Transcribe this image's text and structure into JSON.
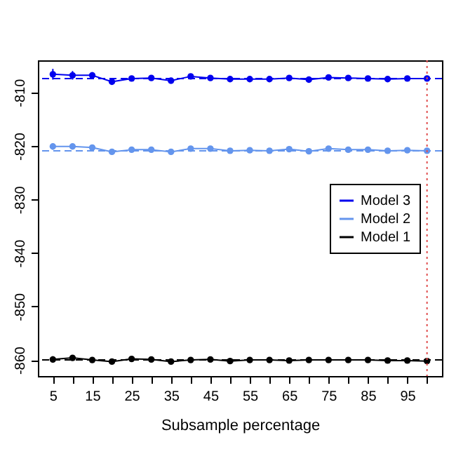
{
  "chart_data": {
    "type": "line",
    "xlabel": "Subsample percentage",
    "x": [
      5,
      10,
      15,
      20,
      25,
      30,
      35,
      40,
      45,
      50,
      55,
      60,
      65,
      70,
      75,
      80,
      85,
      90,
      95,
      100
    ],
    "series": [
      {
        "name": "Model 3",
        "color": "#0000ee",
        "values": [
          -806.6,
          -806.8,
          -806.8,
          -808.0,
          -807.4,
          -807.3,
          -807.8,
          -807.0,
          -807.3,
          -807.5,
          -807.5,
          -807.5,
          -807.3,
          -807.6,
          -807.2,
          -807.3,
          -807.4,
          -807.5,
          -807.4,
          -807.4
        ],
        "errors": [
          1.0,
          0.8,
          0.6,
          0.5,
          0.4,
          0.4,
          0.4,
          0.3,
          0.3,
          0.3,
          0.3,
          0.3,
          0.3,
          0.3,
          0.3,
          0.3,
          0.3,
          0.3,
          0.3,
          null
        ]
      },
      {
        "name": "Model 2",
        "color": "#6495ed",
        "values": [
          -820.1,
          -820.1,
          -820.3,
          -821.1,
          -820.7,
          -820.7,
          -821.1,
          -820.5,
          -820.5,
          -820.9,
          -820.8,
          -820.9,
          -820.6,
          -821.0,
          -820.5,
          -820.7,
          -820.7,
          -820.9,
          -820.8,
          -820.9
        ],
        "errors": [
          0.6,
          0.5,
          0.5,
          0.4,
          0.4,
          0.4,
          0.4,
          0.3,
          0.3,
          0.3,
          0.3,
          0.3,
          0.3,
          0.3,
          0.3,
          0.3,
          0.3,
          0.3,
          0.3,
          null
        ]
      },
      {
        "name": "Model 1",
        "color": "#000000",
        "values": [
          -859.9,
          -859.6,
          -860.0,
          -860.3,
          -859.8,
          -859.9,
          -860.3,
          -860.0,
          -859.9,
          -860.2,
          -860.0,
          -860.0,
          -860.1,
          -860.0,
          -860.0,
          -860.0,
          -860.0,
          -860.1,
          -860.1,
          -860.2
        ],
        "errors": [
          0.6,
          0.4,
          0.3,
          0.3,
          0.3,
          0.3,
          0.3,
          0.3,
          0.3,
          0.3,
          0.3,
          0.3,
          0.3,
          0.3,
          0.3,
          0.3,
          0.3,
          0.3,
          0.3,
          null
        ]
      }
    ],
    "xlim": [
      1.2,
      103.8
    ],
    "xticks": [
      5,
      {
        "value": 10,
        "label": null
      },
      15,
      {
        "value": 20,
        "label": null
      },
      25,
      {
        "value": 30,
        "label": null
      },
      35,
      {
        "value": 40,
        "label": null
      },
      45,
      {
        "value": 50,
        "label": null
      },
      55,
      {
        "value": 60,
        "label": null
      },
      65,
      {
        "value": 70,
        "label": null
      },
      75,
      {
        "value": 80,
        "label": null
      },
      85,
      {
        "value": 90,
        "label": null
      },
      95,
      {
        "value": 100,
        "label": null
      }
    ],
    "ylim": [
      -863,
      -804
    ],
    "yticks": [
      -860,
      -850,
      -840,
      -830,
      -820,
      -810
    ],
    "ref_lines": [
      {
        "axis": "y",
        "value": -807.4,
        "color": "#0000ee",
        "line_style": "dashed"
      },
      {
        "axis": "y",
        "value": -820.9,
        "color": "#6495ed",
        "line_style": "dashed"
      },
      {
        "axis": "y",
        "value": -860.0,
        "color": "#000000",
        "line_style": "dashed"
      },
      {
        "axis": "x",
        "value": 100,
        "color": "#e05050",
        "line_style": "dotted"
      }
    ],
    "legend": "right",
    "marker": "circle",
    "grid": false,
    "line_style": "solid"
  }
}
